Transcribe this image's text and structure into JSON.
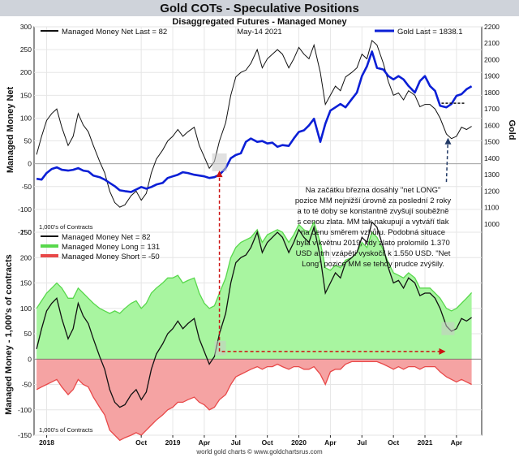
{
  "header": {
    "title": "Gold COTs - Speculative Positions",
    "subtitle": "Disaggregated Futures - Managed Money",
    "footer": "world gold charts © www.goldchartsrus.com"
  },
  "colors": {
    "title_bar": "#cfd3da",
    "mm_net_line": "#111111",
    "gold_line": "#0b1fd6",
    "long_fill": "#a8f5a0",
    "long_line": "#58d84c",
    "short_fill": "#f5a3a3",
    "short_line": "#e84848",
    "annotation_arrow": "#cc1111",
    "highlight_box": "#c8c8c8"
  },
  "annotation": {
    "lines": [
      "Na začátku března dosáhly \"net LONG\"",
      "pozice MM nejnižší úrovně za poslední 2 roky",
      "a to té doby se konstantně zvyšují souběžně",
      "s cenou zlata. MM tak nakupují a vytváří tlak",
      "na cenu směrem vzhůru. Podobná situace",
      "byla v květnu 2019, kdy zlato prolomilo 1.370",
      "USD a trh vzápětí vyskočil k 1.550 USD. \"Net",
      "Long\" pozice MM se tehdy prudce zvýšily."
    ]
  },
  "chart_data": [
    {
      "type": "line",
      "title": "Gold COTs - Speculative Positions",
      "subtitle": "Disaggregated Futures - Managed Money",
      "ylabel_left": "Managed Money Net",
      "ylabel_right": "Gold",
      "units_note": "1,000's of Contracts",
      "date_label": "May-14  2021",
      "legend": [
        {
          "label": "Managed Money Net  Last = 82"
        },
        {
          "label": "Gold Last = 1838.1"
        }
      ],
      "ylim_left": [
        -150,
        300
      ],
      "yticks_left": [
        "300",
        "250",
        "200",
        "150",
        "100",
        "50",
        "0",
        "-50",
        "-100",
        "-150"
      ],
      "ylim_right": [
        950,
        2200
      ],
      "yticks_right": [
        "2200",
        "2100",
        "2000",
        "1900",
        "1800",
        "1700",
        "1600",
        "1500",
        "1400",
        "1300",
        "1200",
        "1100",
        "1000"
      ],
      "x_range": [
        2017.9,
        2021.45
      ],
      "series": [
        {
          "name": "Managed Money Net",
          "axis": "left",
          "x": [
            2017.92,
            2017.96,
            2018.0,
            2018.04,
            2018.08,
            2018.12,
            2018.17,
            2018.21,
            2018.25,
            2018.29,
            2018.33,
            2018.37,
            2018.42,
            2018.46,
            2018.5,
            2018.54,
            2018.58,
            2018.62,
            2018.67,
            2018.71,
            2018.75,
            2018.79,
            2018.83,
            2018.87,
            2018.92,
            2018.96,
            2019.0,
            2019.04,
            2019.08,
            2019.12,
            2019.17,
            2019.21,
            2019.25,
            2019.29,
            2019.33,
            2019.37,
            2019.42,
            2019.46,
            2019.5,
            2019.54,
            2019.58,
            2019.62,
            2019.67,
            2019.71,
            2019.75,
            2019.79,
            2019.83,
            2019.87,
            2019.92,
            2019.96,
            2020.0,
            2020.04,
            2020.08,
            2020.12,
            2020.17,
            2020.21,
            2020.25,
            2020.29,
            2020.33,
            2020.37,
            2020.42,
            2020.46,
            2020.5,
            2020.54,
            2020.58,
            2020.62,
            2020.67,
            2020.71,
            2020.75,
            2020.79,
            2020.83,
            2020.87,
            2020.92,
            2020.96,
            2021.0,
            2021.04,
            2021.08,
            2021.12,
            2021.17,
            2021.21,
            2021.25,
            2021.29,
            2021.33,
            2021.37
          ],
          "values": [
            20,
            60,
            95,
            110,
            120,
            80,
            40,
            60,
            110,
            85,
            70,
            40,
            5,
            -20,
            -60,
            -85,
            -95,
            -90,
            -70,
            -60,
            -80,
            -65,
            -20,
            10,
            30,
            50,
            60,
            75,
            60,
            70,
            80,
            40,
            15,
            -10,
            5,
            50,
            90,
            150,
            190,
            200,
            205,
            220,
            250,
            210,
            230,
            240,
            250,
            240,
            210,
            230,
            255,
            240,
            230,
            260,
            200,
            130,
            150,
            170,
            160,
            190,
            200,
            210,
            240,
            230,
            270,
            260,
            220,
            180,
            150,
            155,
            140,
            160,
            150,
            125,
            130,
            130,
            120,
            100,
            65,
            55,
            60,
            80,
            75,
            82
          ]
        },
        {
          "name": "Gold",
          "axis": "right",
          "x": [
            2017.92,
            2017.96,
            2018.0,
            2018.04,
            2018.08,
            2018.12,
            2018.17,
            2018.21,
            2018.25,
            2018.29,
            2018.33,
            2018.37,
            2018.42,
            2018.46,
            2018.5,
            2018.54,
            2018.58,
            2018.62,
            2018.67,
            2018.71,
            2018.75,
            2018.79,
            2018.83,
            2018.87,
            2018.92,
            2018.96,
            2019.0,
            2019.04,
            2019.08,
            2019.12,
            2019.17,
            2019.21,
            2019.25,
            2019.29,
            2019.33,
            2019.37,
            2019.42,
            2019.46,
            2019.5,
            2019.54,
            2019.58,
            2019.62,
            2019.67,
            2019.71,
            2019.75,
            2019.79,
            2019.83,
            2019.87,
            2019.92,
            2019.96,
            2020.0,
            2020.04,
            2020.08,
            2020.12,
            2020.17,
            2020.21,
            2020.25,
            2020.29,
            2020.33,
            2020.37,
            2020.42,
            2020.46,
            2020.5,
            2020.54,
            2020.58,
            2020.62,
            2020.67,
            2020.71,
            2020.75,
            2020.79,
            2020.83,
            2020.87,
            2020.92,
            2020.96,
            2021.0,
            2021.04,
            2021.08,
            2021.12,
            2021.17,
            2021.21,
            2021.25,
            2021.29,
            2021.33,
            2021.37
          ],
          "values": [
            1275,
            1270,
            1310,
            1335,
            1345,
            1330,
            1325,
            1330,
            1340,
            1325,
            1320,
            1295,
            1285,
            1270,
            1250,
            1230,
            1205,
            1200,
            1195,
            1210,
            1225,
            1215,
            1225,
            1240,
            1250,
            1280,
            1290,
            1300,
            1315,
            1310,
            1300,
            1295,
            1290,
            1280,
            1285,
            1300,
            1340,
            1400,
            1420,
            1430,
            1500,
            1520,
            1500,
            1505,
            1490,
            1495,
            1470,
            1480,
            1475,
            1520,
            1560,
            1570,
            1600,
            1640,
            1500,
            1610,
            1690,
            1710,
            1730,
            1710,
            1760,
            1800,
            1900,
            1960,
            2050,
            1950,
            1940,
            1900,
            1880,
            1900,
            1880,
            1840,
            1800,
            1870,
            1900,
            1840,
            1810,
            1720,
            1710,
            1730,
            1780,
            1790,
            1820,
            1838.1
          ]
        }
      ]
    },
    {
      "type": "area",
      "ylabel": "Managed Money - 1,000's of contracts",
      "units_note": "1,000's of Contracts",
      "ylim": [
        -150,
        250
      ],
      "yticks": [
        "250",
        "200",
        "150",
        "100",
        "50",
        "0",
        "-50",
        "-100",
        "-150"
      ],
      "x_range": [
        2017.9,
        2021.45
      ],
      "xtick_labels": [
        "2018",
        "Oct",
        "2019",
        "Apr",
        "Jul",
        "Oct",
        "2020",
        "Apr",
        "Jul",
        "Oct",
        "2021",
        "Apr"
      ],
      "xtick_positions": [
        2018.0,
        2018.75,
        2019.0,
        2019.25,
        2019.5,
        2019.75,
        2020.0,
        2020.25,
        2020.5,
        2020.75,
        2021.0,
        2021.25
      ],
      "legend": [
        {
          "label": "Managed Money Net   = 82"
        },
        {
          "label": "Managed Money Long  = 131"
        },
        {
          "label": "Managed Money Short = -50"
        }
      ],
      "series": [
        {
          "name": "Managed Money Long",
          "x": [
            2017.92,
            2017.96,
            2018.0,
            2018.04,
            2018.08,
            2018.12,
            2018.17,
            2018.21,
            2018.25,
            2018.29,
            2018.33,
            2018.37,
            2018.42,
            2018.46,
            2018.5,
            2018.54,
            2018.58,
            2018.62,
            2018.67,
            2018.71,
            2018.75,
            2018.79,
            2018.83,
            2018.87,
            2018.92,
            2018.96,
            2019.0,
            2019.04,
            2019.08,
            2019.12,
            2019.17,
            2019.21,
            2019.25,
            2019.29,
            2019.33,
            2019.37,
            2019.42,
            2019.46,
            2019.5,
            2019.54,
            2019.58,
            2019.62,
            2019.67,
            2019.71,
            2019.75,
            2019.79,
            2019.83,
            2019.87,
            2019.92,
            2019.96,
            2020.0,
            2020.04,
            2020.08,
            2020.12,
            2020.17,
            2020.21,
            2020.25,
            2020.29,
            2020.33,
            2020.37,
            2020.42,
            2020.46,
            2020.5,
            2020.54,
            2020.58,
            2020.62,
            2020.67,
            2020.71,
            2020.75,
            2020.79,
            2020.83,
            2020.87,
            2020.92,
            2020.96,
            2021.0,
            2021.04,
            2021.08,
            2021.12,
            2021.17,
            2021.21,
            2021.25,
            2021.29,
            2021.33,
            2021.37
          ],
          "values": [
            100,
            115,
            130,
            140,
            150,
            140,
            120,
            120,
            140,
            130,
            120,
            110,
            100,
            95,
            90,
            95,
            90,
            100,
            110,
            115,
            100,
            110,
            130,
            140,
            150,
            160,
            160,
            165,
            150,
            155,
            160,
            130,
            110,
            100,
            105,
            130,
            160,
            200,
            220,
            230,
            235,
            240,
            255,
            230,
            245,
            250,
            255,
            250,
            230,
            245,
            265,
            255,
            250,
            270,
            230,
            180,
            175,
            185,
            180,
            195,
            200,
            210,
            230,
            220,
            250,
            240,
            215,
            190,
            170,
            165,
            160,
            170,
            160,
            140,
            140,
            140,
            130,
            120,
            100,
            95,
            100,
            110,
            120,
            131
          ]
        },
        {
          "name": "Managed Money Short",
          "x": [
            2017.92,
            2017.96,
            2018.0,
            2018.04,
            2018.08,
            2018.12,
            2018.17,
            2018.21,
            2018.25,
            2018.29,
            2018.33,
            2018.37,
            2018.42,
            2018.46,
            2018.5,
            2018.54,
            2018.58,
            2018.62,
            2018.67,
            2018.71,
            2018.75,
            2018.79,
            2018.83,
            2018.87,
            2018.92,
            2018.96,
            2019.0,
            2019.04,
            2019.08,
            2019.12,
            2019.17,
            2019.21,
            2019.25,
            2019.29,
            2019.33,
            2019.37,
            2019.42,
            2019.46,
            2019.5,
            2019.54,
            2019.58,
            2019.62,
            2019.67,
            2019.71,
            2019.75,
            2019.79,
            2019.83,
            2019.87,
            2019.92,
            2019.96,
            2020.0,
            2020.04,
            2020.08,
            2020.12,
            2020.17,
            2020.21,
            2020.25,
            2020.29,
            2020.33,
            2020.37,
            2020.42,
            2020.46,
            2020.5,
            2020.54,
            2020.58,
            2020.62,
            2020.67,
            2020.71,
            2020.75,
            2020.79,
            2020.83,
            2020.87,
            2020.92,
            2020.96,
            2021.0,
            2021.04,
            2021.08,
            2021.12,
            2021.17,
            2021.21,
            2021.25,
            2021.29,
            2021.33,
            2021.37
          ],
          "values": [
            -60,
            -55,
            -50,
            -45,
            -40,
            -55,
            -70,
            -60,
            -40,
            -50,
            -55,
            -75,
            -95,
            -110,
            -140,
            -150,
            -160,
            -155,
            -150,
            -145,
            -150,
            -140,
            -130,
            -120,
            -110,
            -100,
            -95,
            -85,
            -85,
            -80,
            -75,
            -85,
            -90,
            -100,
            -95,
            -80,
            -70,
            -50,
            -35,
            -30,
            -25,
            -20,
            -15,
            -20,
            -15,
            -15,
            -10,
            -15,
            -20,
            -15,
            -15,
            -20,
            -20,
            -15,
            -30,
            -50,
            -25,
            -20,
            -20,
            -10,
            -5,
            -5,
            -5,
            -5,
            -5,
            -5,
            -10,
            -15,
            -20,
            -15,
            -20,
            -15,
            -15,
            -20,
            -15,
            -15,
            -15,
            -25,
            -35,
            -40,
            -45,
            -40,
            -45,
            -50
          ]
        },
        {
          "name": "Managed Money Net",
          "x": [
            2017.92,
            2017.96,
            2018.0,
            2018.04,
            2018.08,
            2018.12,
            2018.17,
            2018.21,
            2018.25,
            2018.29,
            2018.33,
            2018.37,
            2018.42,
            2018.46,
            2018.5,
            2018.54,
            2018.58,
            2018.62,
            2018.67,
            2018.71,
            2018.75,
            2018.79,
            2018.83,
            2018.87,
            2018.92,
            2018.96,
            2019.0,
            2019.04,
            2019.08,
            2019.12,
            2019.17,
            2019.21,
            2019.25,
            2019.29,
            2019.33,
            2019.37,
            2019.42,
            2019.46,
            2019.5,
            2019.54,
            2019.58,
            2019.62,
            2019.67,
            2019.71,
            2019.75,
            2019.79,
            2019.83,
            2019.87,
            2019.92,
            2019.96,
            2020.0,
            2020.04,
            2020.08,
            2020.12,
            2020.17,
            2020.21,
            2020.25,
            2020.29,
            2020.33,
            2020.37,
            2020.42,
            2020.46,
            2020.5,
            2020.54,
            2020.58,
            2020.62,
            2020.67,
            2020.71,
            2020.75,
            2020.79,
            2020.83,
            2020.87,
            2020.92,
            2020.96,
            2021.0,
            2021.04,
            2021.08,
            2021.12,
            2021.17,
            2021.21,
            2021.25,
            2021.29,
            2021.33,
            2021.37
          ],
          "values": [
            20,
            60,
            95,
            110,
            120,
            80,
            40,
            60,
            110,
            85,
            70,
            40,
            5,
            -20,
            -60,
            -85,
            -95,
            -90,
            -70,
            -60,
            -80,
            -65,
            -20,
            10,
            30,
            50,
            60,
            75,
            60,
            70,
            80,
            40,
            15,
            -10,
            5,
            50,
            90,
            150,
            190,
            200,
            205,
            220,
            250,
            210,
            230,
            240,
            250,
            240,
            210,
            230,
            255,
            240,
            230,
            260,
            200,
            130,
            150,
            170,
            160,
            190,
            200,
            210,
            240,
            230,
            270,
            260,
            220,
            180,
            150,
            155,
            140,
            160,
            150,
            125,
            130,
            130,
            120,
            100,
            65,
            55,
            60,
            80,
            75,
            82
          ]
        }
      ]
    }
  ]
}
